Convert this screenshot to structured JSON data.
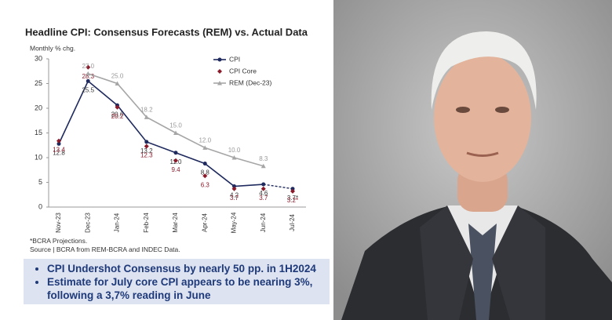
{
  "chart_data": {
    "type": "line",
    "title": "Headline CPI: Consensus Forecasts (REM) vs. Actual Data",
    "y_label": "Monthly % chg.",
    "categories": [
      "Nov-23",
      "Dec-23",
      "Jan-24",
      "Feb-24",
      "Mar-24",
      "Apr-24",
      "May-24",
      "Jun-24",
      "Jul-24"
    ],
    "ylim": [
      0,
      30
    ],
    "yticks": [
      0,
      5,
      10,
      15,
      20,
      25,
      30
    ],
    "last_segment_dashed": true,
    "series": [
      {
        "name": "CPI",
        "color": "#1f2a5e",
        "marker": "circle",
        "line": true,
        "values": [
          12.8,
          25.5,
          20.6,
          13.2,
          11.0,
          8.8,
          4.2,
          4.6,
          3.7
        ],
        "value_labels": [
          "12.8",
          "25.5",
          "20.6",
          "13.2",
          "11.0",
          "8.8",
          "4.2",
          "4.6",
          "3.7*"
        ]
      },
      {
        "name": "CPI Core",
        "color": "#8b1a2a",
        "marker": "diamond",
        "line": false,
        "values": [
          13.4,
          28.3,
          20.2,
          12.3,
          9.4,
          6.3,
          3.7,
          3.7,
          3.2
        ],
        "value_labels": [
          "13.4",
          "28.3",
          "20.2",
          "12.3",
          "9.4",
          "6.3",
          "3.7",
          "3.7",
          "3.2*"
        ]
      },
      {
        "name": "REM (Dec-23)",
        "color": "#a6a6a6",
        "marker": "triangle",
        "line": true,
        "values": [
          null,
          27.0,
          25.0,
          18.2,
          15.0,
          12.0,
          10.0,
          8.3,
          null
        ],
        "value_labels": [
          null,
          "27.0",
          "25.0",
          "18.2",
          "15.0",
          "12.0",
          "10.0",
          "8.3",
          null
        ]
      }
    ],
    "notes": [
      "*BCRA Projections.",
      "Source | BCRA from REM-BCRA and INDEC Data."
    ],
    "bullets": [
      "CPI Undershot Consensus by nearly 50 pp. in 1H2024",
      "Estimate for July core CPI appears to be nearing 3%, following a 3,7% reading in June"
    ]
  }
}
